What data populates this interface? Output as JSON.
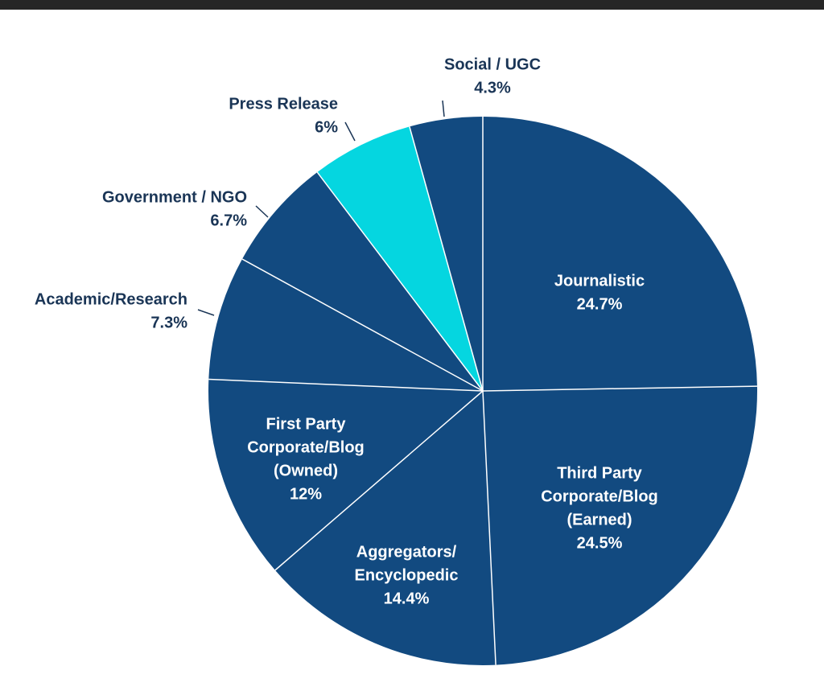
{
  "colors": {
    "slice_default": "#124a80",
    "slice_highlight": "#05d6e0",
    "inside_label": "#ffffff",
    "outside_label": "#1a3556",
    "separator": "#ffffff",
    "top_bar": "#262626"
  },
  "chart_data": {
    "type": "pie",
    "title": "",
    "slices": [
      {
        "label": "Journalistic",
        "label_lines": [
          "Journalistic"
        ],
        "value": 24.7,
        "value_text": "24.7%",
        "highlight": false,
        "label_placement": "inside"
      },
      {
        "label": "Third Party Corporate/Blog (Earned)",
        "label_lines": [
          "Third Party",
          "Corporate/Blog",
          "(Earned)"
        ],
        "value": 24.5,
        "value_text": "24.5%",
        "highlight": false,
        "label_placement": "inside"
      },
      {
        "label": "Aggregators/ Encyclopedic",
        "label_lines": [
          "Aggregators/",
          "Encyclopedic"
        ],
        "value": 14.4,
        "value_text": "14.4%",
        "highlight": false,
        "label_placement": "inside"
      },
      {
        "label": "First Party Corporate/Blog (Owned)",
        "label_lines": [
          "First Party",
          "Corporate/Blog",
          "(Owned)"
        ],
        "value": 12,
        "value_text": "12%",
        "highlight": false,
        "label_placement": "inside"
      },
      {
        "label": "Academic/Research",
        "label_lines": [
          "Academic/Research"
        ],
        "value": 7.3,
        "value_text": "7.3%",
        "highlight": false,
        "label_placement": "outside"
      },
      {
        "label": "Government / NGO",
        "label_lines": [
          "Government / NGO"
        ],
        "value": 6.7,
        "value_text": "6.7%",
        "highlight": false,
        "label_placement": "outside"
      },
      {
        "label": "Press Release",
        "label_lines": [
          "Press Release"
        ],
        "value": 6,
        "value_text": "6%",
        "highlight": true,
        "label_placement": "outside"
      },
      {
        "label": "Social / UGC",
        "label_lines": [
          "Social / UGC"
        ],
        "value": 4.3,
        "value_text": "4.3%",
        "highlight": false,
        "label_placement": "outside"
      }
    ]
  }
}
